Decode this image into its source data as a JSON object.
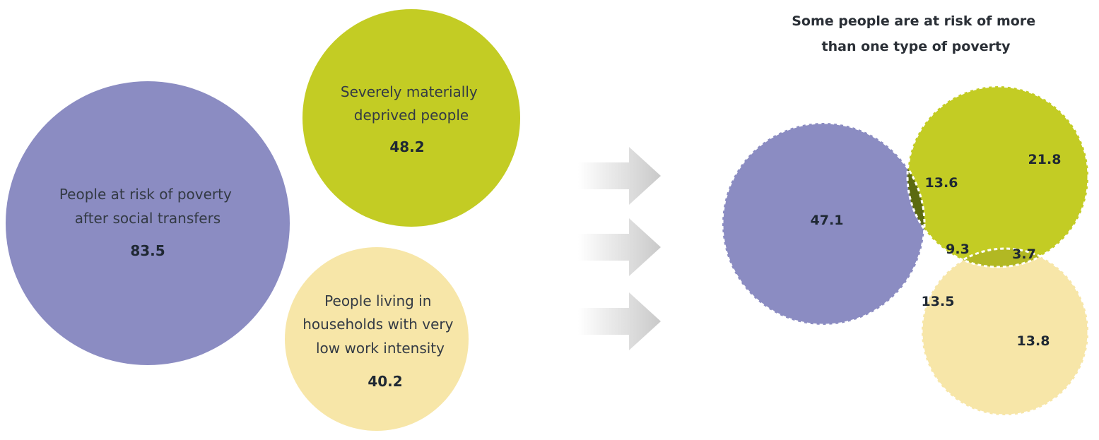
{
  "colors": {
    "poverty": "#8b8cc2",
    "deprived": "#c3cc24",
    "work": "#f7e6a8",
    "poverty_deprived": "#5c6a10",
    "all_three": "#4d5410",
    "deprived_work": "#b2b823",
    "poverty_work": "#7a7a7a",
    "arrow": "#d0d0d0"
  },
  "groups": {
    "poverty": {
      "label_lines": [
        "People at risk of poverty",
        "after social transfers"
      ],
      "value": "83.5"
    },
    "deprived": {
      "label_lines": [
        "Severely materially",
        "deprived people"
      ],
      "value": "48.2"
    },
    "work": {
      "label_lines": [
        "People living in",
        "households with very",
        "low work intensity"
      ],
      "value": "40.2"
    }
  },
  "venn": {
    "title_lines": [
      "Some people are at risk of more",
      "than one type of poverty"
    ],
    "regions": {
      "poverty_only": "47.1",
      "deprived_only": "21.8",
      "work_only": "13.8",
      "poverty_deprived": "13.6",
      "all_three": "9.3",
      "deprived_work": "3.7",
      "poverty_work": "13.5"
    }
  },
  "arrows": [
    {
      "name": "arrow-top"
    },
    {
      "name": "arrow-middle"
    },
    {
      "name": "arrow-bottom"
    }
  ]
}
